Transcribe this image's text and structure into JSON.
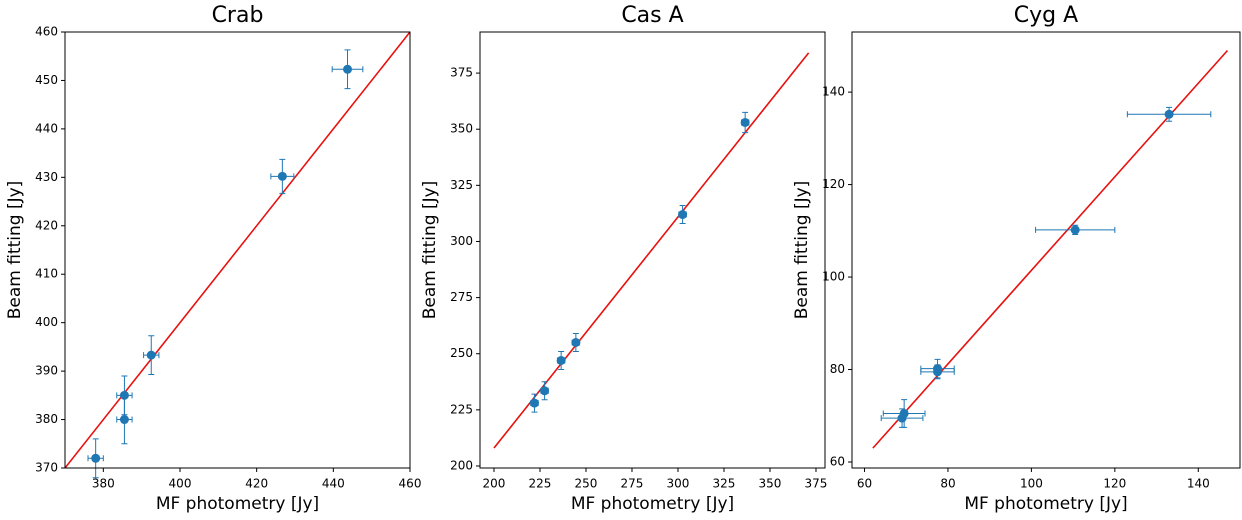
{
  "chart_data": [
    {
      "type": "scatter",
      "title": "Crab",
      "x_label": "MF photometry [Jy]",
      "y_label": "Beam fitting [Jy]",
      "color": "#1f77b4",
      "fit_color": "#e8110f",
      "x": [
        378,
        385.5,
        385.5,
        392.5,
        426.7,
        443.7
      ],
      "y": [
        372,
        385,
        380,
        393.3,
        430.2,
        452.3
      ],
      "xerr": [
        2,
        2,
        2,
        2,
        3,
        4
      ],
      "yerr": [
        4,
        4,
        5,
        4,
        3.5,
        4
      ],
      "fit_x": [
        370,
        460
      ],
      "fit_y": [
        370,
        460
      ],
      "xlim": [
        370,
        460
      ],
      "ylim": [
        370,
        460
      ],
      "xticks": [
        380,
        400,
        420,
        440,
        460
      ],
      "yticks": [
        370,
        380,
        390,
        400,
        410,
        420,
        430,
        440,
        450,
        460
      ]
    },
    {
      "type": "scatter",
      "title": "Cas A",
      "x_label": "MF photometry [Jy]",
      "y_label": "Beam fitting [Jy]",
      "color": "#1f77b4",
      "fit_color": "#e8110f",
      "x": [
        222,
        227.5,
        236.5,
        244.5,
        302.5,
        336.5
      ],
      "y": [
        228,
        233.5,
        247,
        255,
        312,
        353
      ],
      "xerr": [
        2,
        2,
        2,
        2,
        2,
        2
      ],
      "yerr": [
        4,
        4,
        4,
        4,
        4,
        4.5
      ],
      "fit_x": [
        200,
        371
      ],
      "fit_y": [
        208,
        384
      ],
      "xlim": [
        192.4,
        379.9
      ],
      "ylim": [
        199.1,
        393.3
      ],
      "xticks": [
        200,
        225,
        250,
        275,
        300,
        325,
        350,
        375
      ],
      "yticks": [
        200,
        225,
        250,
        275,
        300,
        325,
        350,
        375
      ]
    },
    {
      "type": "scatter",
      "title": "Cyg A",
      "x_label": "MF photometry [Jy]",
      "y_label": "Beam fitting [Jy]",
      "color": "#1f77b4",
      "fit_color": "#e8110f",
      "x": [
        69,
        69.5,
        77.5,
        77.5,
        110.5,
        133
      ],
      "y": [
        69.5,
        70.5,
        79.5,
        80.2,
        110.2,
        135.2
      ],
      "xerr": [
        5,
        5,
        4,
        4,
        9.5,
        10
      ],
      "yerr": [
        2,
        3,
        1.5,
        2,
        1,
        1.5
      ],
      "fit_x": [
        62,
        147
      ],
      "fit_y": [
        63,
        149
      ],
      "xlim": [
        57,
        150
      ],
      "ylim": [
        58.7,
        153
      ],
      "xticks": [
        60,
        80,
        100,
        120,
        140
      ],
      "yticks": [
        60,
        80,
        100,
        120,
        140
      ]
    }
  ]
}
